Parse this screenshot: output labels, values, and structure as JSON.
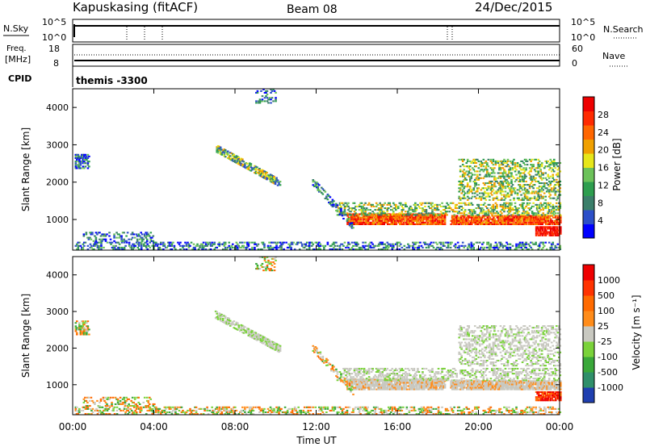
{
  "header": {
    "station": "Kapuskasing (fitACF)",
    "beam": "Beam 08",
    "date": "24/Dec/2015"
  },
  "noise_panel": {
    "left_label": "N.Sky",
    "left_ticks": [
      "10^5",
      "10^0"
    ],
    "right_ticks": [
      "10^5",
      "10^0"
    ],
    "right_label": "N.Search"
  },
  "freq_panel": {
    "label_line1": "Freq.",
    "label_line2": "[MHz]",
    "left_ticks": [
      "18",
      "8"
    ],
    "right_ticks": [
      "60",
      "0"
    ],
    "right_label": "Nave"
  },
  "cpid": {
    "label": "CPID",
    "value": "themis -3300"
  },
  "chart_data": [
    {
      "type": "heatmap",
      "name": "power",
      "ylabel": "Slant Range [km]",
      "yticks": [
        "4000",
        "3000",
        "2000",
        "1000"
      ],
      "ylim": [
        180,
        4500
      ],
      "xlim": [
        0,
        24
      ],
      "colorbar": {
        "label": "Power [dB]",
        "ticks": [
          "28",
          "24",
          "20",
          "16",
          "12",
          "8",
          "4"
        ],
        "colors": [
          "#0000ff",
          "#2c4fc8",
          "#3b7f6a",
          "#2e9e4f",
          "#6cc25a",
          "#e6e61a",
          "#f0a000",
          "#ff6600",
          "#ff2a00",
          "#ee0000"
        ]
      }
    },
    {
      "type": "heatmap",
      "name": "velocity",
      "ylabel": "Slant Range [km]",
      "yticks": [
        "4000",
        "3000",
        "2000",
        "1000"
      ],
      "ylim": [
        180,
        4500
      ],
      "xlim": [
        0,
        24
      ],
      "colorbar": {
        "label": "Velocity [m s⁻¹]",
        "ticks": [
          "1000",
          "500",
          "100",
          "25",
          "-25",
          "-100",
          "-500",
          "-1000"
        ],
        "colors": [
          "#1f3fb0",
          "#2f8f6a",
          "#3aa83a",
          "#7ad23a",
          "#c8c8c0",
          "#ff8c1a",
          "#ff6a00",
          "#ff3300",
          "#ee0000"
        ]
      }
    }
  ],
  "time_axis": {
    "label": "Time UT",
    "ticks": [
      "00:00",
      "04:00",
      "08:00",
      "12:00",
      "16:00",
      "20:00",
      "00:00"
    ]
  }
}
